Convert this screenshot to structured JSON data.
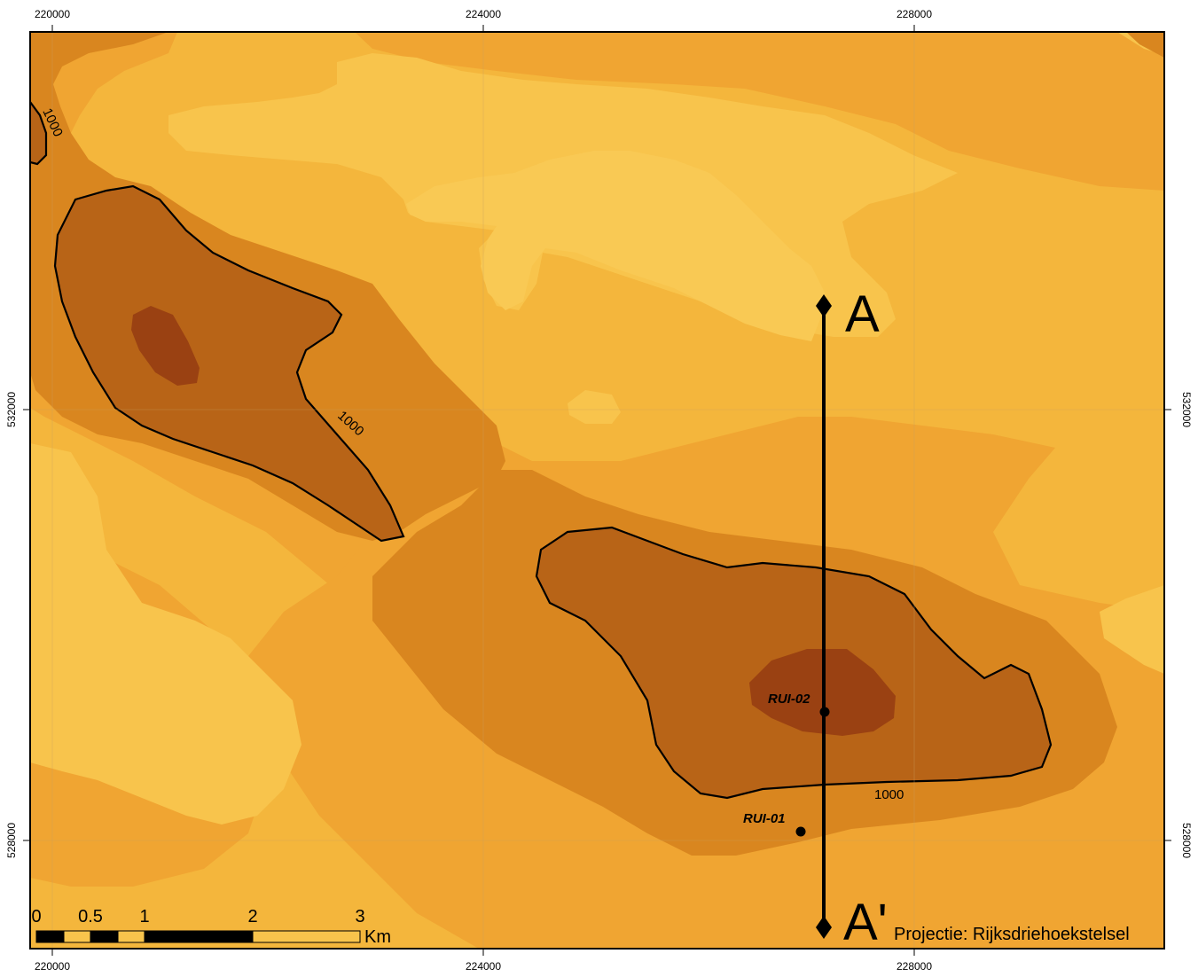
{
  "colors": {
    "band1": "#f8c44c",
    "band2": "#f4b63c",
    "band3": "#f0a532",
    "band4": "#d9861f",
    "band5": "#b86417",
    "band6": "#9a4112",
    "contour_line": "#000000",
    "frame": "#000000"
  },
  "axes": {
    "x_top": [
      "220000",
      "224000",
      "228000"
    ],
    "x_bottom": [
      "220000",
      "224000",
      "228000"
    ],
    "y_left": [
      "532000",
      "528000"
    ],
    "y_right": [
      "532000",
      "528000"
    ]
  },
  "contours": {
    "label_nw_top": "1000",
    "label_nw_mid": "1000",
    "label_se": "1000"
  },
  "wells": [
    {
      "name": "RUI-02"
    },
    {
      "name": "RUI-01"
    }
  ],
  "cross_section": {
    "start_label": "A",
    "end_label": "A'"
  },
  "scale_bar": {
    "ticks": [
      "0",
      "0.5",
      "1",
      "2",
      "3"
    ],
    "unit": "Km"
  },
  "projection": "Projectie: Rijksdriehoekstelsel"
}
